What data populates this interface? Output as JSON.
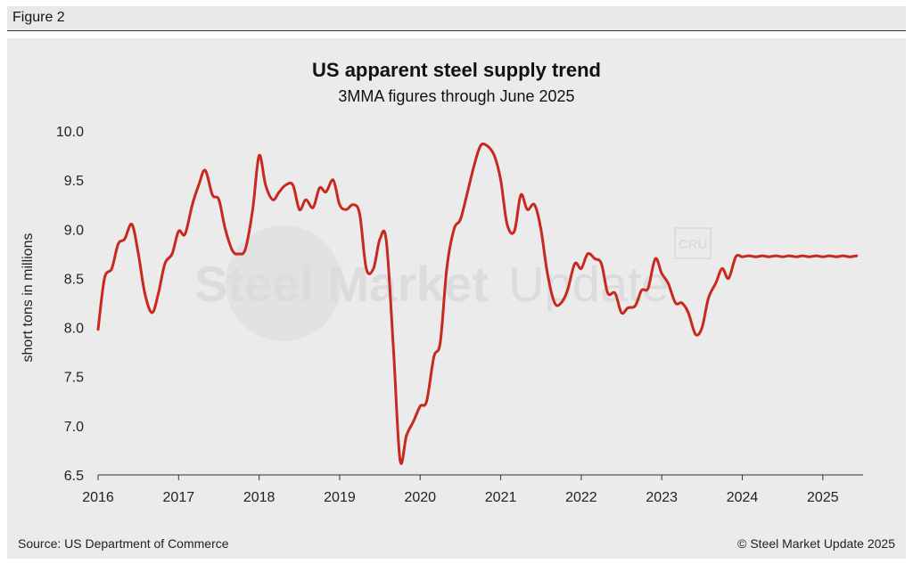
{
  "figure_label": "Figure 2",
  "source": "Source: US Department of Commerce",
  "copyright": "© Steel Market Update 2025",
  "watermark": {
    "bold": "Steel Market",
    "light": "Update",
    "badge": "CRU"
  },
  "colors": {
    "line": "#c8281e",
    "panel": "#ebebeb",
    "axis": "#333333",
    "watermark": "#dcdcdc"
  },
  "chart_data": {
    "type": "line",
    "title": "US apparent steel supply trend",
    "subtitle": "3MMA figures through June 2025",
    "xlabel": "",
    "ylabel": "short tons in millions",
    "xlim": [
      2016.0,
      2025.5
    ],
    "ylim": [
      6.5,
      10.0
    ],
    "yticks": [
      10.0,
      9.5,
      9.0,
      8.5,
      8.0,
      7.5,
      7.0,
      6.5
    ],
    "ytick_labels": [
      "10.0",
      "9.5",
      "9.0",
      "8.5",
      "8.0",
      "7.5",
      "7.0",
      "6.5"
    ],
    "xticks": [
      2016,
      2017,
      2018,
      2019,
      2020,
      2021,
      2022,
      2023,
      2024,
      2025
    ],
    "xtick_labels": [
      "2016",
      "2017",
      "2018",
      "2019",
      "2020",
      "2021",
      "2022",
      "2023",
      "2024",
      "2025"
    ],
    "grid": false,
    "series": [
      {
        "name": "US apparent steel supply (3MMA)",
        "x": [
          2016.0,
          2016.08,
          2016.17,
          2016.25,
          2016.33,
          2016.42,
          2016.5,
          2016.58,
          2016.67,
          2016.75,
          2016.83,
          2016.92,
          2017.0,
          2017.08,
          2017.17,
          2017.25,
          2017.33,
          2017.42,
          2017.5,
          2017.58,
          2017.67,
          2017.75,
          2017.83,
          2017.92,
          2018.0,
          2018.08,
          2018.17,
          2018.25,
          2018.33,
          2018.42,
          2018.5,
          2018.58,
          2018.67,
          2018.75,
          2018.83,
          2018.92,
          2019.0,
          2019.08,
          2019.17,
          2019.25,
          2019.33,
          2019.42,
          2019.5,
          2019.58,
          2019.67,
          2019.75,
          2019.83,
          2019.92,
          2020.0,
          2020.08,
          2020.17,
          2020.25,
          2020.33,
          2020.42,
          2020.5,
          2020.58,
          2020.67,
          2020.75,
          2020.83,
          2020.92,
          2021.0,
          2021.08,
          2021.17,
          2021.25,
          2021.33,
          2021.42,
          2021.5,
          2021.58,
          2021.67,
          2021.75,
          2021.83,
          2021.92,
          2022.0,
          2022.08,
          2022.17,
          2022.25,
          2022.33,
          2022.42,
          2022.5,
          2022.58,
          2022.67,
          2022.75,
          2022.83,
          2022.92,
          2023.0,
          2023.08,
          2023.17,
          2023.25,
          2023.33,
          2023.42,
          2023.5,
          2023.58,
          2023.67,
          2023.75,
          2023.83,
          2023.92,
          2024.0,
          2024.08,
          2024.17,
          2024.25,
          2024.33,
          2024.42,
          2024.5,
          2024.58,
          2024.67,
          2024.75,
          2024.83,
          2024.92,
          2025.0,
          2025.08,
          2025.17,
          2025.25,
          2025.33,
          2025.42
        ],
        "values": [
          7.98,
          8.5,
          8.6,
          8.85,
          8.9,
          9.05,
          8.75,
          8.35,
          8.15,
          8.35,
          8.65,
          8.75,
          8.98,
          8.95,
          9.25,
          9.45,
          9.6,
          9.35,
          9.3,
          9.0,
          8.78,
          8.75,
          8.8,
          9.2,
          9.75,
          9.45,
          9.3,
          9.38,
          9.45,
          9.45,
          9.2,
          9.3,
          9.22,
          9.42,
          9.38,
          9.5,
          9.25,
          9.2,
          9.25,
          9.15,
          8.6,
          8.6,
          8.9,
          8.88,
          7.75,
          6.65,
          6.9,
          7.05,
          7.2,
          7.25,
          7.7,
          7.85,
          8.6,
          9.0,
          9.1,
          9.35,
          9.65,
          9.85,
          9.85,
          9.75,
          9.5,
          9.05,
          8.98,
          9.35,
          9.2,
          9.25,
          9.0,
          8.55,
          8.25,
          8.25,
          8.38,
          8.65,
          8.6,
          8.75,
          8.7,
          8.65,
          8.35,
          8.35,
          8.15,
          8.2,
          8.22,
          8.38,
          8.4,
          8.7,
          8.55,
          8.45,
          8.25,
          8.25,
          8.15,
          7.93,
          8.0,
          8.3,
          8.45,
          8.6,
          8.5,
          8.72,
          8.72,
          8.73,
          8.72,
          8.73,
          8.72,
          8.73,
          8.72,
          8.73,
          8.72,
          8.73,
          8.72,
          8.73,
          8.72,
          8.73,
          8.72,
          8.73,
          8.72,
          8.73
        ],
        "color": "#c8281e"
      }
    ]
  }
}
